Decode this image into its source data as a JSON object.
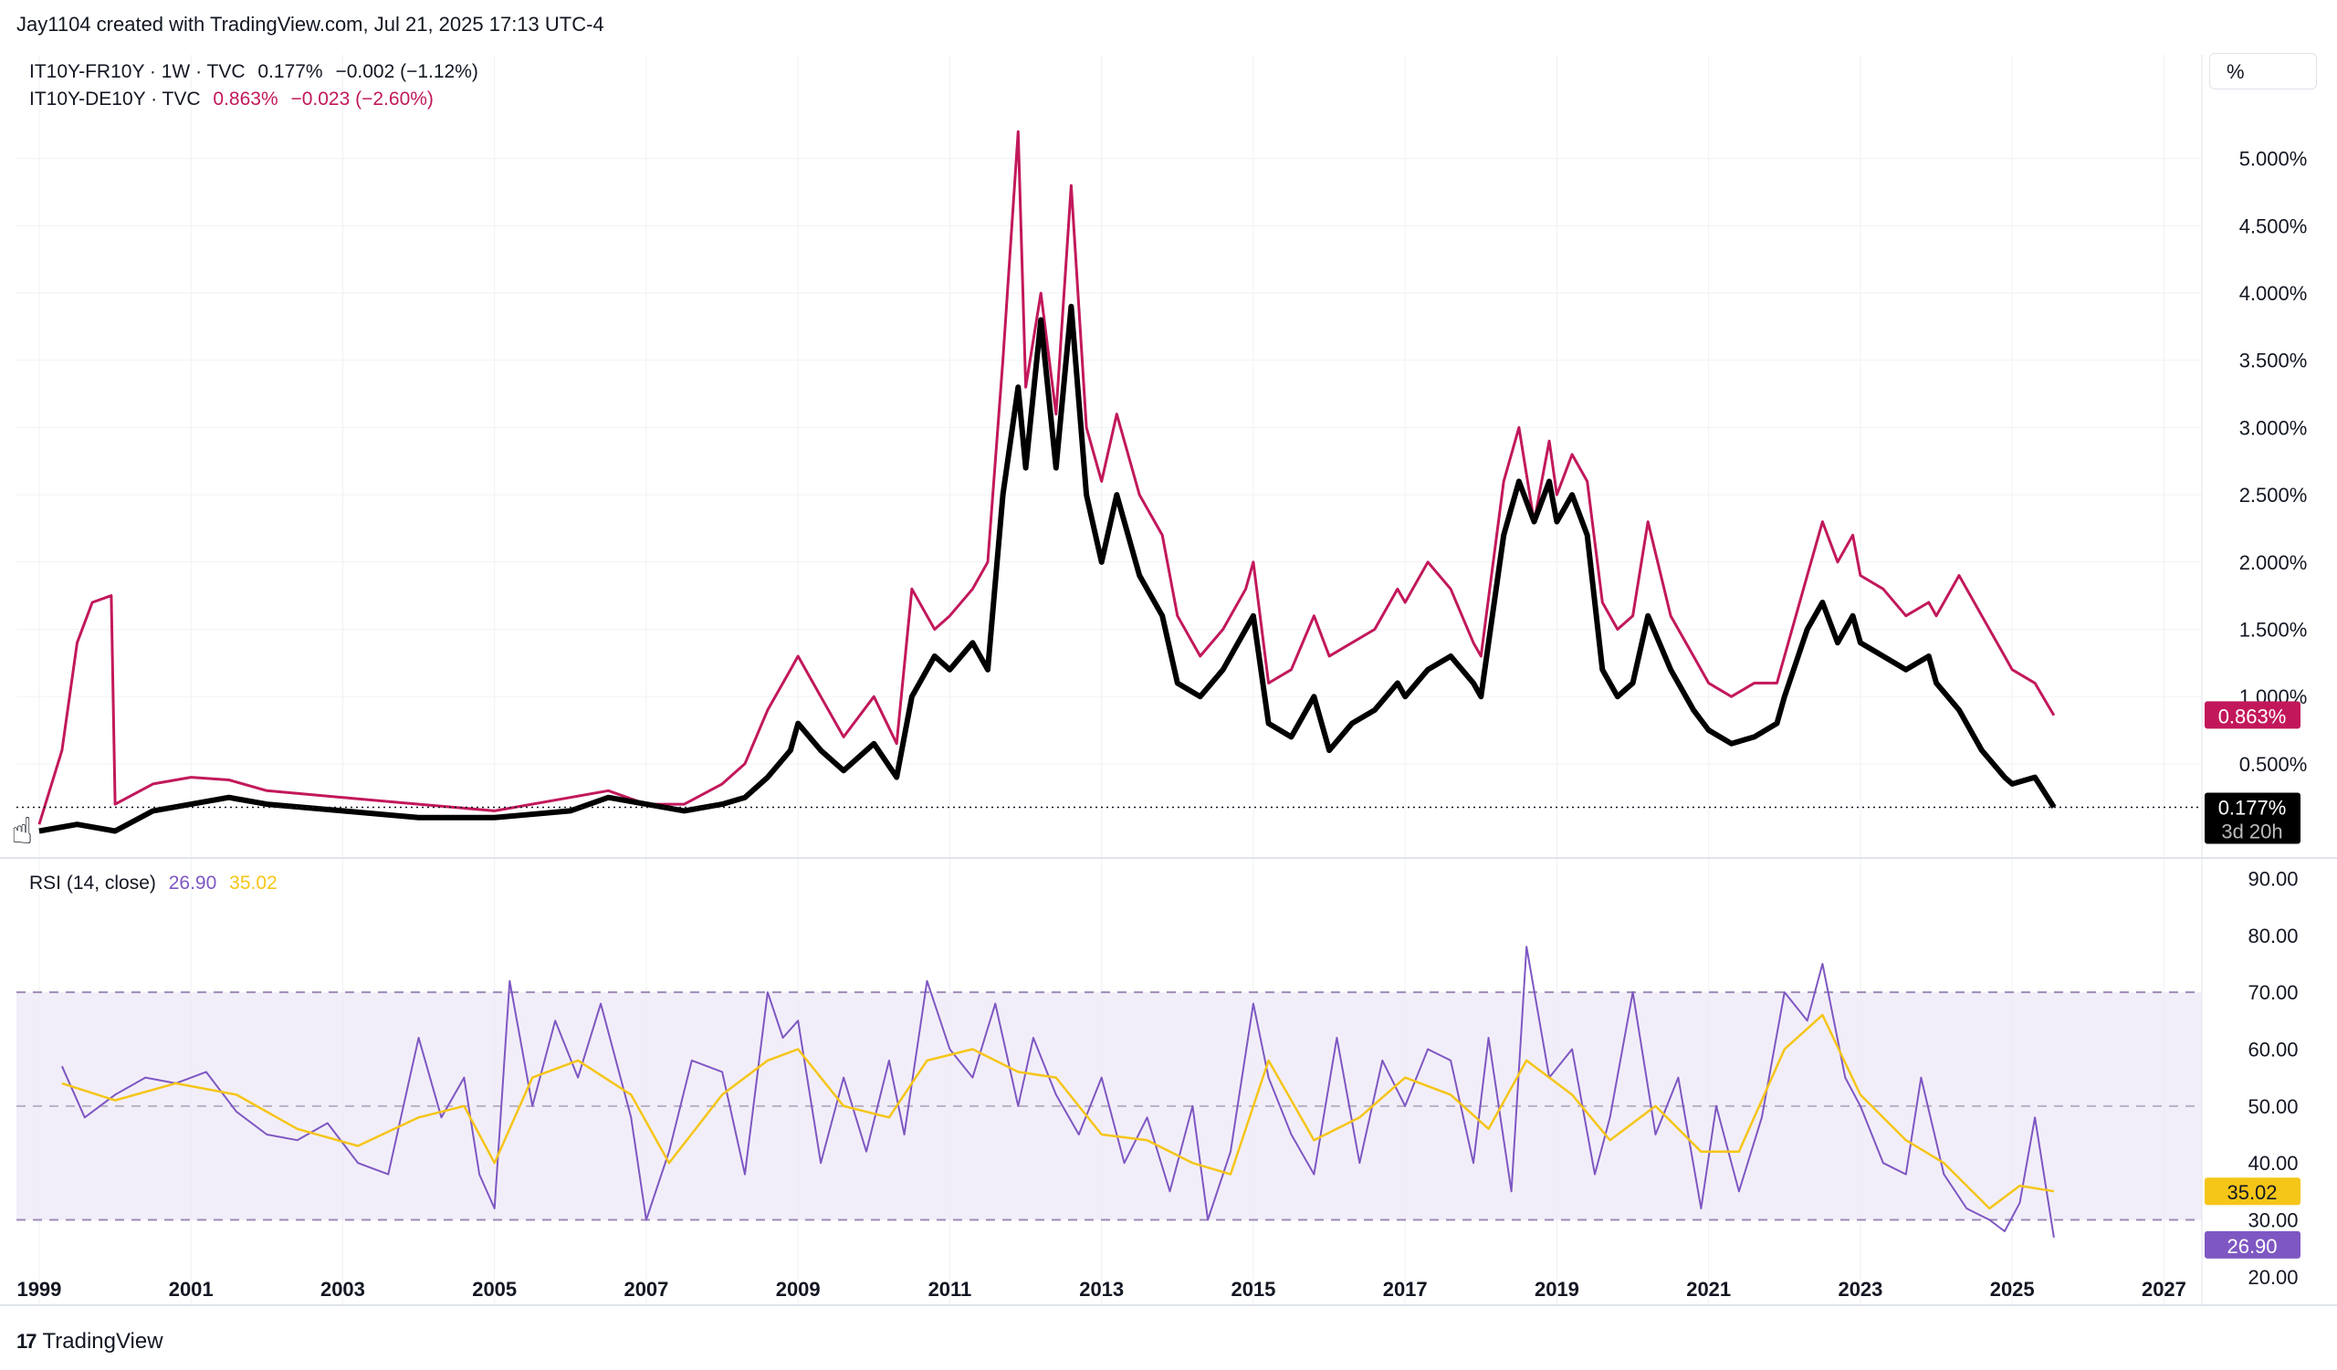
{
  "header": {
    "text": "Jay1104 created with TradingView.com, Jul 21, 2025 17:13 UTC-4"
  },
  "legend": {
    "series1": {
      "name": "IT10Y-FR10Y · 1W · TVC",
      "value": "0.177%",
      "change": "−0.002 (−1.12%)"
    },
    "series2": {
      "name": "IT10Y-DE10Y · TVC",
      "value": "0.863%",
      "change": "−0.023 (−2.60%)"
    },
    "rsi": {
      "name": "RSI (14, close)",
      "rsi_value": "26.90",
      "ma_value": "35.02"
    }
  },
  "scale_unit": "%",
  "countdown": "3d 20h",
  "brand": {
    "logo": "17",
    "name": "TradingView"
  },
  "colors": {
    "series1": "#000000",
    "series2": "#c2185b",
    "rsi": "#7e57c2",
    "rsi_ma": "#f5c518",
    "rsi_band": "#ede7f6"
  },
  "chart_data": [
    {
      "type": "line",
      "title": "",
      "price_ticks": [
        "5.000%",
        "4.500%",
        "4.000%",
        "3.500%",
        "3.000%",
        "2.500%",
        "2.000%",
        "1.500%",
        "1.000%",
        "0.500%"
      ],
      "ylim": [
        -0.2,
        5.5
      ],
      "x_ticks": [
        "1999",
        "2001",
        "2003",
        "2005",
        "2007",
        "2009",
        "2011",
        "2013",
        "2015",
        "2017",
        "2019",
        "2021",
        "2023",
        "2025",
        "2027"
      ],
      "xlim": [
        1998.7,
        2027.5
      ],
      "series": [
        {
          "name": "IT10Y-DE10Y · TVC",
          "x": [
            1999.0,
            1999.3,
            1999.5,
            1999.7,
            1999.95,
            2000.0,
            2000.5,
            2001.0,
            2001.5,
            2002.0,
            2003.0,
            2004.0,
            2005.0,
            2006.0,
            2006.5,
            2007.0,
            2007.5,
            2008.0,
            2008.3,
            2008.6,
            2008.9,
            2009.0,
            2009.3,
            2009.6,
            2010.0,
            2010.3,
            2010.5,
            2010.8,
            2011.0,
            2011.3,
            2011.5,
            2011.7,
            2011.9,
            2012.0,
            2012.2,
            2012.4,
            2012.6,
            2012.8,
            2013.0,
            2013.2,
            2013.5,
            2013.8,
            2014.0,
            2014.3,
            2014.6,
            2014.9,
            2015.0,
            2015.2,
            2015.5,
            2015.8,
            2016.0,
            2016.3,
            2016.6,
            2016.9,
            2017.0,
            2017.3,
            2017.6,
            2017.9,
            2018.0,
            2018.3,
            2018.5,
            2018.7,
            2018.9,
            2019.0,
            2019.2,
            2019.4,
            2019.6,
            2019.8,
            2020.0,
            2020.2,
            2020.5,
            2020.8,
            2021.0,
            2021.3,
            2021.6,
            2021.9,
            2022.0,
            2022.3,
            2022.5,
            2022.7,
            2022.9,
            2023.0,
            2023.3,
            2023.6,
            2023.9,
            2024.0,
            2024.3,
            2024.6,
            2024.9,
            2025.0,
            2025.3,
            2025.55
          ],
          "y": [
            0.05,
            0.6,
            1.4,
            1.7,
            1.75,
            0.2,
            0.35,
            0.4,
            0.38,
            0.3,
            0.25,
            0.2,
            0.15,
            0.25,
            0.3,
            0.2,
            0.2,
            0.35,
            0.5,
            0.9,
            1.2,
            1.3,
            1.0,
            0.7,
            1.0,
            0.65,
            1.8,
            1.5,
            1.6,
            1.8,
            2.0,
            3.5,
            5.2,
            3.3,
            4.0,
            3.1,
            4.8,
            3.0,
            2.6,
            3.1,
            2.5,
            2.2,
            1.6,
            1.3,
            1.5,
            1.8,
            2.0,
            1.1,
            1.2,
            1.6,
            1.3,
            1.4,
            1.5,
            1.8,
            1.7,
            2.0,
            1.8,
            1.4,
            1.3,
            2.6,
            3.0,
            2.3,
            2.9,
            2.5,
            2.8,
            2.6,
            1.7,
            1.5,
            1.6,
            2.3,
            1.6,
            1.3,
            1.1,
            1.0,
            1.1,
            1.1,
            1.3,
            1.9,
            2.3,
            2.0,
            2.2,
            1.9,
            1.8,
            1.6,
            1.7,
            1.6,
            1.9,
            1.6,
            1.3,
            1.2,
            1.1,
            0.86
          ]
        },
        {
          "name": "IT10Y-FR10Y · 1W · TVC",
          "x": [
            1999.0,
            1999.5,
            2000.0,
            2000.5,
            2001.0,
            2001.5,
            2002.0,
            2003.0,
            2004.0,
            2005.0,
            2006.0,
            2006.5,
            2007.0,
            2007.5,
            2008.0,
            2008.3,
            2008.6,
            2008.9,
            2009.0,
            2009.3,
            2009.6,
            2010.0,
            2010.3,
            2010.5,
            2010.8,
            2011.0,
            2011.3,
            2011.5,
            2011.7,
            2011.9,
            2012.0,
            2012.2,
            2012.4,
            2012.6,
            2012.8,
            2013.0,
            2013.2,
            2013.5,
            2013.8,
            2014.0,
            2014.3,
            2014.6,
            2014.9,
            2015.0,
            2015.2,
            2015.5,
            2015.8,
            2016.0,
            2016.3,
            2016.6,
            2016.9,
            2017.0,
            2017.3,
            2017.6,
            2017.9,
            2018.0,
            2018.3,
            2018.5,
            2018.7,
            2018.9,
            2019.0,
            2019.2,
            2019.4,
            2019.6,
            2019.8,
            2020.0,
            2020.2,
            2020.5,
            2020.8,
            2021.0,
            2021.3,
            2021.6,
            2021.9,
            2022.0,
            2022.3,
            2022.5,
            2022.7,
            2022.9,
            2023.0,
            2023.3,
            2023.6,
            2023.9,
            2024.0,
            2024.3,
            2024.6,
            2024.9,
            2025.0,
            2025.3,
            2025.55
          ],
          "y": [
            0.0,
            0.05,
            0.0,
            0.15,
            0.2,
            0.25,
            0.2,
            0.15,
            0.1,
            0.1,
            0.15,
            0.25,
            0.2,
            0.15,
            0.2,
            0.25,
            0.4,
            0.6,
            0.8,
            0.6,
            0.45,
            0.65,
            0.4,
            1.0,
            1.3,
            1.2,
            1.4,
            1.2,
            2.5,
            3.3,
            2.7,
            3.8,
            2.7,
            3.9,
            2.5,
            2.0,
            2.5,
            1.9,
            1.6,
            1.1,
            1.0,
            1.2,
            1.5,
            1.6,
            0.8,
            0.7,
            1.0,
            0.6,
            0.8,
            0.9,
            1.1,
            1.0,
            1.2,
            1.3,
            1.1,
            1.0,
            2.2,
            2.6,
            2.3,
            2.6,
            2.3,
            2.5,
            2.2,
            1.2,
            1.0,
            1.1,
            1.6,
            1.2,
            0.9,
            0.75,
            0.65,
            0.7,
            0.8,
            1.0,
            1.5,
            1.7,
            1.4,
            1.6,
            1.4,
            1.3,
            1.2,
            1.3,
            1.1,
            0.9,
            0.6,
            0.4,
            0.35,
            0.4,
            0.177
          ]
        }
      ]
    },
    {
      "type": "line",
      "title": "RSI (14, close)",
      "y_ticks": [
        "90.00",
        "80.00",
        "70.00",
        "60.00",
        "50.00",
        "40.00",
        "30.00",
        "20.00"
      ],
      "ylim": [
        15,
        92
      ],
      "bands": {
        "upper": 70,
        "middle": 50,
        "lower": 30
      },
      "series": [
        {
          "name": "RSI",
          "x": [
            1999.3,
            1999.6,
            2000.0,
            2000.4,
            2000.8,
            2001.2,
            2001.6,
            2002.0,
            2002.4,
            2002.8,
            2003.2,
            2003.6,
            2004.0,
            2004.3,
            2004.6,
            2004.8,
            2005.0,
            2005.2,
            2005.5,
            2005.8,
            2006.1,
            2006.4,
            2006.8,
            2007.0,
            2007.3,
            2007.6,
            2008.0,
            2008.3,
            2008.6,
            2008.8,
            2009.0,
            2009.3,
            2009.6,
            2009.9,
            2010.2,
            2010.4,
            2010.7,
            2011.0,
            2011.3,
            2011.6,
            2011.9,
            2012.1,
            2012.4,
            2012.7,
            2013.0,
            2013.3,
            2013.6,
            2013.9,
            2014.2,
            2014.4,
            2014.7,
            2015.0,
            2015.2,
            2015.5,
            2015.8,
            2016.1,
            2016.4,
            2016.7,
            2017.0,
            2017.3,
            2017.6,
            2017.9,
            2018.1,
            2018.4,
            2018.6,
            2018.9,
            2019.2,
            2019.5,
            2019.7,
            2020.0,
            2020.3,
            2020.6,
            2020.9,
            2021.1,
            2021.4,
            2021.7,
            2022.0,
            2022.3,
            2022.5,
            2022.8,
            2023.0,
            2023.3,
            2023.6,
            2023.8,
            2024.1,
            2024.4,
            2024.7,
            2024.9,
            2025.1,
            2025.3,
            2025.55
          ],
          "y": [
            57,
            48,
            52,
            55,
            54,
            56,
            49,
            45,
            44,
            47,
            40,
            38,
            62,
            48,
            55,
            38,
            32,
            72,
            50,
            65,
            55,
            68,
            48,
            30,
            42,
            58,
            56,
            38,
            70,
            62,
            65,
            40,
            55,
            42,
            58,
            45,
            72,
            60,
            55,
            68,
            50,
            62,
            52,
            45,
            55,
            40,
            48,
            35,
            50,
            30,
            42,
            68,
            55,
            45,
            38,
            62,
            40,
            58,
            50,
            60,
            58,
            40,
            62,
            35,
            78,
            55,
            60,
            38,
            48,
            70,
            45,
            55,
            32,
            50,
            35,
            48,
            70,
            65,
            75,
            55,
            50,
            40,
            38,
            55,
            38,
            32,
            30,
            28,
            33,
            48,
            26.9
          ]
        },
        {
          "name": "RSI-based MA",
          "x": [
            1999.3,
            2000.0,
            2000.8,
            2001.6,
            2002.4,
            2003.2,
            2004.0,
            2004.6,
            2005.0,
            2005.5,
            2006.1,
            2006.8,
            2007.3,
            2008.0,
            2008.6,
            2009.0,
            2009.6,
            2010.2,
            2010.7,
            2011.3,
            2011.9,
            2012.4,
            2013.0,
            2013.6,
            2014.2,
            2014.7,
            2015.2,
            2015.8,
            2016.4,
            2017.0,
            2017.6,
            2018.1,
            2018.6,
            2019.2,
            2019.7,
            2020.3,
            2020.9,
            2021.4,
            2022.0,
            2022.5,
            2023.0,
            2023.6,
            2024.1,
            2024.7,
            2025.1,
            2025.55
          ],
          "y": [
            54,
            51,
            54,
            52,
            46,
            43,
            48,
            50,
            40,
            55,
            58,
            52,
            40,
            52,
            58,
            60,
            50,
            48,
            58,
            60,
            56,
            55,
            45,
            44,
            40,
            38,
            58,
            44,
            48,
            55,
            52,
            46,
            58,
            52,
            44,
            50,
            42,
            42,
            60,
            66,
            52,
            44,
            40,
            32,
            36,
            35.02
          ]
        }
      ]
    }
  ]
}
